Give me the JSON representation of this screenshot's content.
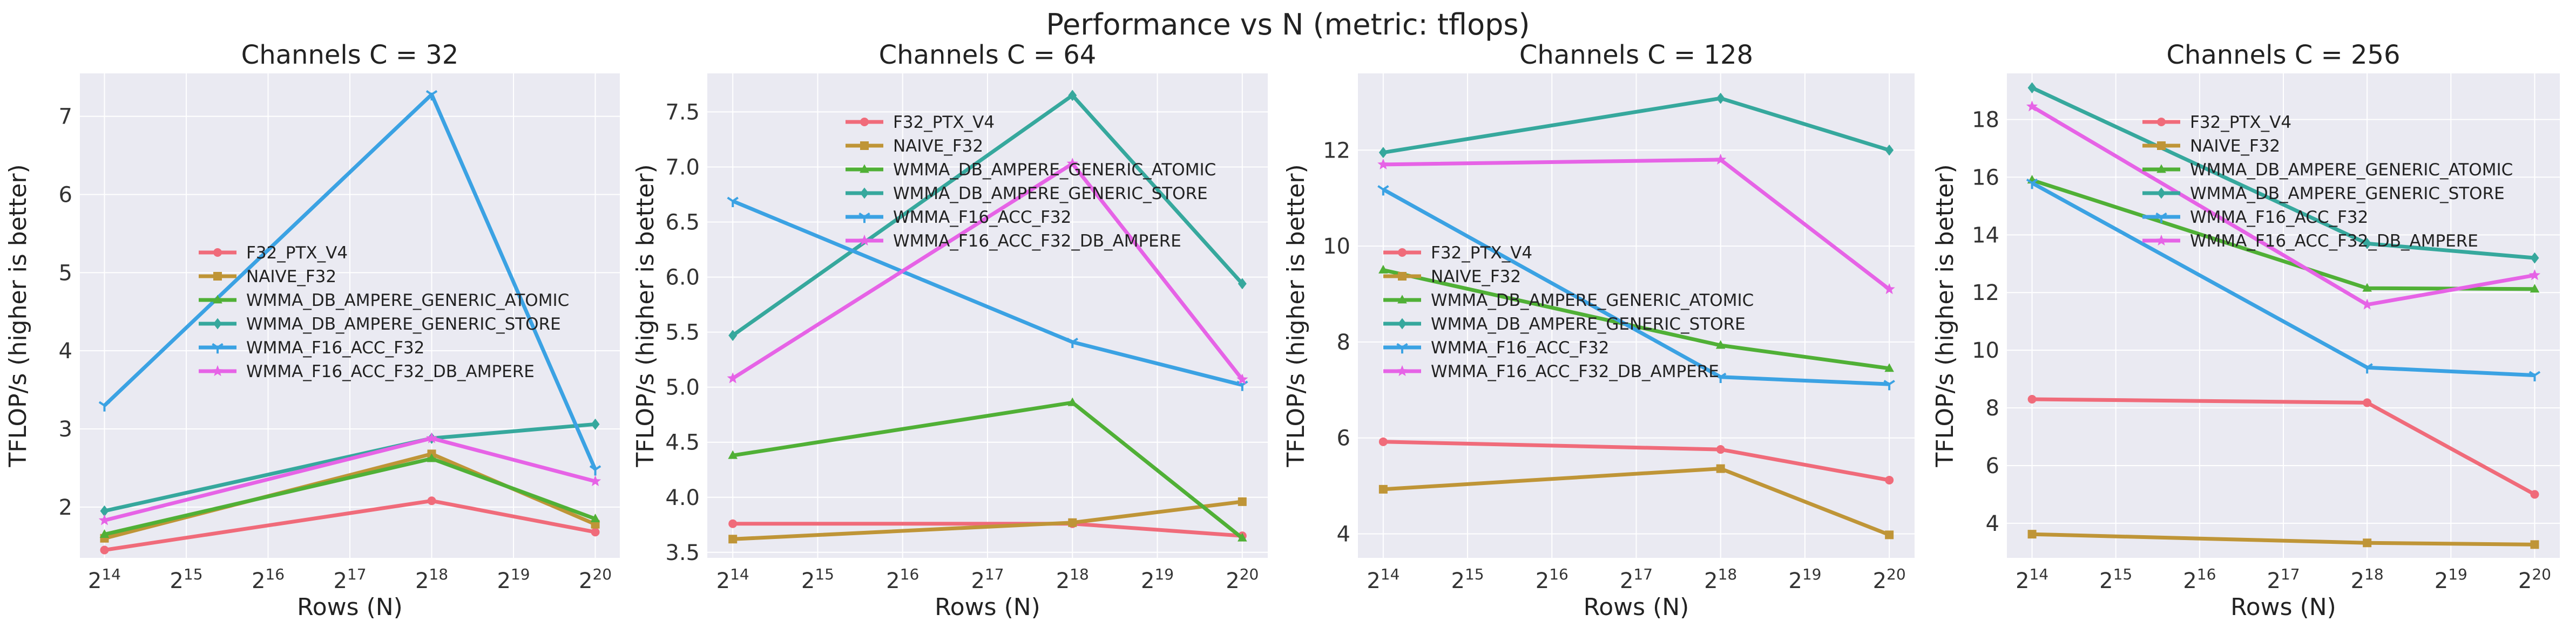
{
  "suptitle": "Performance vs N (metric: tflops)",
  "colors": {
    "F32_PTX_V4": "#f06b7a",
    "NAIVE_F32": "#bf9537",
    "WMMA_DB_AMPERE_GENERIC_ATOMIC": "#50b036",
    "WMMA_DB_AMPERE_GENERIC_STORE": "#36a89d",
    "WMMA_F16_ACC_F32": "#3ba2e3",
    "WMMA_F16_ACC_F32_DB_AMPERE": "#e663e6"
  },
  "chart_data": [
    {
      "type": "line",
      "title": "Channels C = 32",
      "xlabel": "Rows (N)",
      "ylabel": "TFLOP/s (higher is better)",
      "xscale": "log2",
      "x": [
        16384,
        262144,
        1048576
      ],
      "xticks": [
        14,
        15,
        16,
        17,
        18,
        19,
        20
      ],
      "ylim": [
        1.35,
        7.55
      ],
      "yticks": [
        2,
        3,
        4,
        5,
        6,
        7
      ],
      "grid": true,
      "legend": "center-left",
      "series": [
        {
          "name": "F32_PTX_V4",
          "values": [
            1.45,
            2.08,
            1.68
          ]
        },
        {
          "name": "NAIVE_F32",
          "values": [
            1.6,
            2.68,
            1.78
          ]
        },
        {
          "name": "WMMA_DB_AMPERE_GENERIC_ATOMIC",
          "values": [
            1.65,
            2.62,
            1.85
          ]
        },
        {
          "name": "WMMA_DB_AMPERE_GENERIC_STORE",
          "values": [
            1.95,
            2.88,
            3.06
          ]
        },
        {
          "name": "WMMA_F16_ACC_F32",
          "values": [
            3.3,
            7.28,
            2.48
          ]
        },
        {
          "name": "WMMA_F16_ACC_F32_DB_AMPERE",
          "values": [
            1.83,
            2.88,
            2.33
          ]
        }
      ]
    },
    {
      "type": "line",
      "title": "Channels C = 64",
      "xlabel": "Rows (N)",
      "ylabel": "TFLOP/s (higher is better)",
      "xscale": "log2",
      "x": [
        16384,
        262144,
        1048576
      ],
      "xticks": [
        14,
        15,
        16,
        17,
        18,
        19,
        20
      ],
      "ylim": [
        3.45,
        7.85
      ],
      "yticks": [
        3.5,
        4.0,
        4.5,
        5.0,
        5.5,
        6.0,
        6.5,
        7.0,
        7.5
      ],
      "grid": true,
      "legend": "upper-center",
      "series": [
        {
          "name": "F32_PTX_V4",
          "values": [
            3.76,
            3.76,
            3.65
          ]
        },
        {
          "name": "NAIVE_F32",
          "values": [
            3.62,
            3.77,
            3.96
          ]
        },
        {
          "name": "WMMA_DB_AMPERE_GENERIC_ATOMIC",
          "values": [
            4.38,
            4.86,
            3.63
          ]
        },
        {
          "name": "WMMA_DB_AMPERE_GENERIC_STORE",
          "values": [
            5.47,
            7.65,
            5.94
          ]
        },
        {
          "name": "WMMA_F16_ACC_F32",
          "values": [
            6.69,
            5.41,
            5.02
          ]
        },
        {
          "name": "WMMA_F16_ACC_F32_DB_AMPERE",
          "values": [
            5.08,
            7.03,
            5.07
          ]
        }
      ]
    },
    {
      "type": "line",
      "title": "Channels C = 128",
      "xlabel": "Rows (N)",
      "ylabel": "TFLOP/s (higher is better)",
      "xscale": "log2",
      "x": [
        16384,
        262144,
        1048576
      ],
      "xticks": [
        14,
        15,
        16,
        17,
        18,
        19,
        20
      ],
      "ylim": [
        3.5,
        13.6
      ],
      "yticks": [
        4,
        6,
        8,
        10,
        12
      ],
      "grid": true,
      "legend": "center-left",
      "series": [
        {
          "name": "F32_PTX_V4",
          "values": [
            5.92,
            5.76,
            5.12
          ]
        },
        {
          "name": "NAIVE_F32",
          "values": [
            4.93,
            5.36,
            3.98
          ]
        },
        {
          "name": "WMMA_DB_AMPERE_GENERIC_ATOMIC",
          "values": [
            9.5,
            7.93,
            7.45
          ]
        },
        {
          "name": "WMMA_DB_AMPERE_GENERIC_STORE",
          "values": [
            11.95,
            13.08,
            12.0
          ]
        },
        {
          "name": "WMMA_F16_ACC_F32",
          "values": [
            11.18,
            7.27,
            7.12
          ]
        },
        {
          "name": "WMMA_F16_ACC_F32_DB_AMPERE",
          "values": [
            11.7,
            11.8,
            9.1
          ]
        }
      ]
    },
    {
      "type": "line",
      "title": "Channels C = 256",
      "xlabel": "Rows (N)",
      "ylabel": "TFLOP/s (higher is better)",
      "xscale": "log2",
      "x": [
        16384,
        262144,
        1048576
      ],
      "xticks": [
        14,
        15,
        16,
        17,
        18,
        19,
        20
      ],
      "ylim": [
        2.8,
        19.6
      ],
      "yticks": [
        4,
        6,
        8,
        10,
        12,
        14,
        16,
        18
      ],
      "grid": true,
      "legend": "upper-center",
      "series": [
        {
          "name": "F32_PTX_V4",
          "values": [
            8.3,
            8.18,
            5.0
          ]
        },
        {
          "name": "NAIVE_F32",
          "values": [
            3.62,
            3.32,
            3.26
          ]
        },
        {
          "name": "WMMA_DB_AMPERE_GENERIC_ATOMIC",
          "values": [
            15.9,
            12.15,
            12.12
          ]
        },
        {
          "name": "WMMA_DB_AMPERE_GENERIC_STORE",
          "values": [
            19.1,
            13.7,
            13.2
          ]
        },
        {
          "name": "WMMA_F16_ACC_F32",
          "values": [
            15.8,
            9.4,
            9.13
          ]
        },
        {
          "name": "WMMA_F16_ACC_F32_DB_AMPERE",
          "values": [
            18.45,
            11.58,
            12.6
          ]
        }
      ]
    }
  ]
}
